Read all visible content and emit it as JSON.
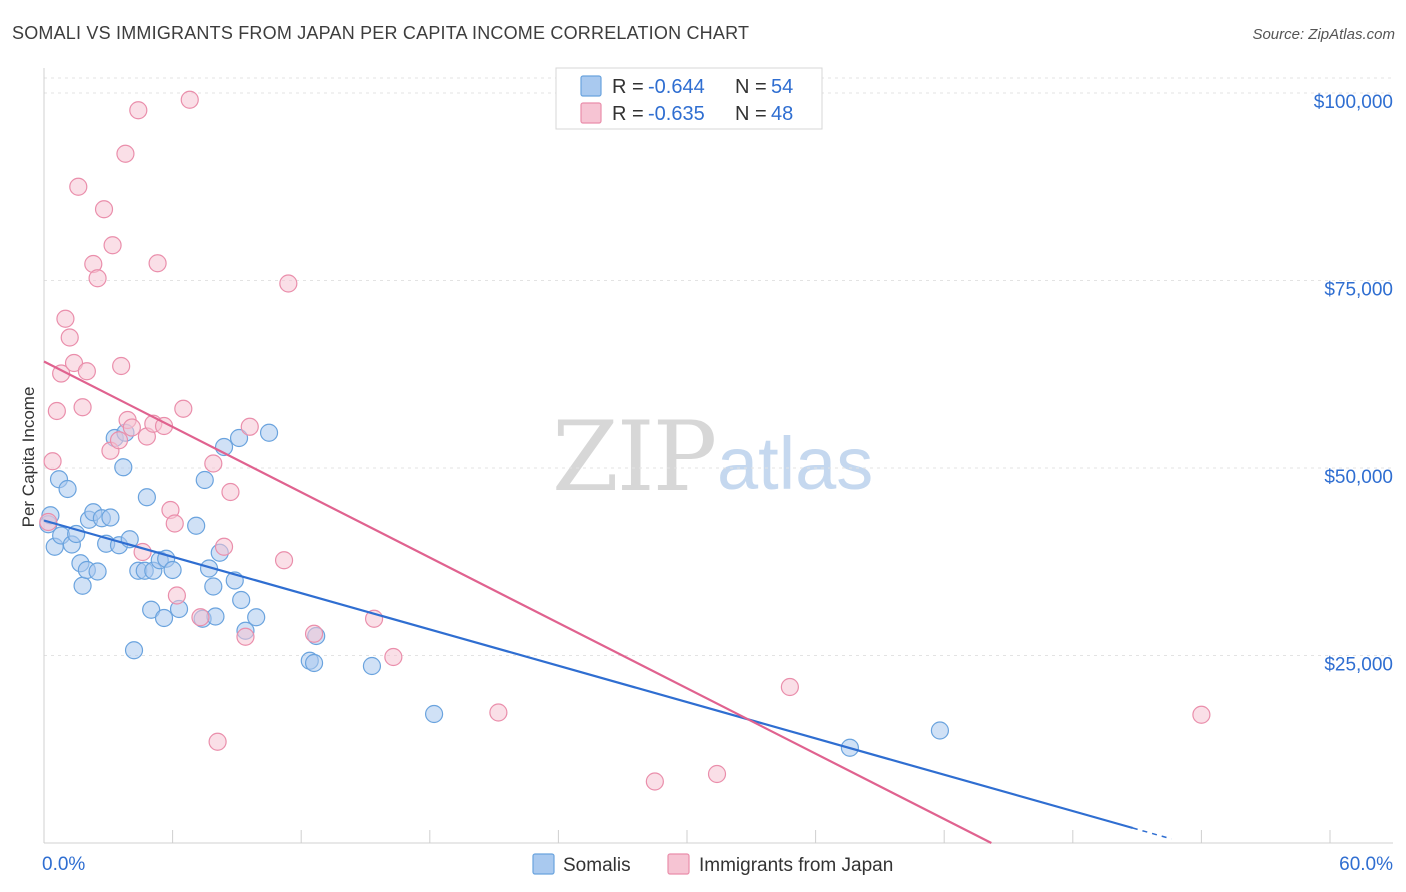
{
  "chart_data": {
    "type": "scatter",
    "title": "SOMALI VS IMMIGRANTS FROM JAPAN PER CAPITA INCOME CORRELATION CHART",
    "source": "Source: ZipAtlas.com",
    "xlabel": "",
    "ylabel": "Per Capita Income",
    "xlim": [
      0,
      60
    ],
    "ylim": [
      0,
      100000
    ],
    "x_tick_labels": {
      "left": "0.0%",
      "right": "60.0%"
    },
    "y_ticks": [
      {
        "value": 100000,
        "label": "$100,000"
      },
      {
        "value": 75000,
        "label": "$75,000"
      },
      {
        "value": 50000,
        "label": "$50,000"
      },
      {
        "value": 25000,
        "label": "$25,000"
      }
    ],
    "grid": true,
    "watermark": {
      "part1": "ZIP",
      "part2": "atlas"
    },
    "legend": {
      "placement": "top-center",
      "r_label": "R = ",
      "n_label": "N = ",
      "entries": [
        {
          "series": "Somalis",
          "r": "-0.644",
          "n": "54"
        },
        {
          "series": "Immigrants from Japan",
          "r": "-0.635",
          "n": "48"
        }
      ]
    },
    "series": [
      {
        "name": "Somalis",
        "color": "#6aa3de",
        "fill": "#a9c9ef",
        "line_color": "#2f6ed1",
        "trend": {
          "x_start": 0,
          "y_start": 43000,
          "x_end": 50.8,
          "y_end": 2000,
          "x_dashed_end": 52.6
        },
        "points": [
          [
            0.2,
            42500
          ],
          [
            0.3,
            43700
          ],
          [
            0.5,
            39500
          ],
          [
            0.7,
            48500
          ],
          [
            0.8,
            41000
          ],
          [
            1.1,
            47200
          ],
          [
            1.3,
            39800
          ],
          [
            1.5,
            41200
          ],
          [
            1.7,
            37300
          ],
          [
            1.8,
            34300
          ],
          [
            2.0,
            36400
          ],
          [
            2.1,
            43100
          ],
          [
            2.3,
            44100
          ],
          [
            2.5,
            36200
          ],
          [
            2.7,
            43300
          ],
          [
            2.9,
            39900
          ],
          [
            3.1,
            43400
          ],
          [
            3.3,
            54000
          ],
          [
            3.5,
            39700
          ],
          [
            3.7,
            50100
          ],
          [
            3.8,
            54700
          ],
          [
            4.0,
            40500
          ],
          [
            4.2,
            25700
          ],
          [
            4.4,
            36300
          ],
          [
            4.7,
            36300
          ],
          [
            4.8,
            46100
          ],
          [
            5.0,
            31100
          ],
          [
            5.1,
            36300
          ],
          [
            5.4,
            37700
          ],
          [
            5.6,
            30000
          ],
          [
            5.7,
            37900
          ],
          [
            6.0,
            36400
          ],
          [
            6.3,
            31200
          ],
          [
            7.1,
            42300
          ],
          [
            7.4,
            29900
          ],
          [
            7.5,
            48400
          ],
          [
            7.7,
            36600
          ],
          [
            7.9,
            34200
          ],
          [
            8.0,
            30200
          ],
          [
            8.2,
            38700
          ],
          [
            8.4,
            52800
          ],
          [
            8.9,
            35000
          ],
          [
            9.1,
            54000
          ],
          [
            9.2,
            32400
          ],
          [
            9.4,
            28300
          ],
          [
            9.9,
            30100
          ],
          [
            10.5,
            54700
          ],
          [
            12.4,
            24300
          ],
          [
            12.6,
            24000
          ],
          [
            12.7,
            27600
          ],
          [
            15.3,
            23600
          ],
          [
            18.2,
            17200
          ],
          [
            37.6,
            12700
          ],
          [
            41.8,
            15000
          ]
        ]
      },
      {
        "name": "Immigrants from Japan",
        "color": "#ea8eab",
        "fill": "#f6c4d3",
        "line_color": "#e0628f",
        "trend": {
          "x_start": 0,
          "y_start": 64200,
          "x_end": 44.2,
          "y_end": 0
        },
        "points": [
          [
            0.2,
            42800
          ],
          [
            0.4,
            50900
          ],
          [
            0.6,
            57600
          ],
          [
            0.8,
            62600
          ],
          [
            1.0,
            69900
          ],
          [
            1.2,
            67400
          ],
          [
            1.4,
            64000
          ],
          [
            1.6,
            87500
          ],
          [
            1.8,
            58100
          ],
          [
            2.0,
            62900
          ],
          [
            2.3,
            77200
          ],
          [
            2.5,
            75300
          ],
          [
            2.8,
            84500
          ],
          [
            3.1,
            52300
          ],
          [
            3.2,
            79700
          ],
          [
            3.5,
            53700
          ],
          [
            3.6,
            63600
          ],
          [
            3.8,
            91900
          ],
          [
            3.9,
            56400
          ],
          [
            4.1,
            55400
          ],
          [
            4.4,
            97700
          ],
          [
            4.6,
            38800
          ],
          [
            4.8,
            54200
          ],
          [
            5.1,
            55900
          ],
          [
            5.3,
            77300
          ],
          [
            5.6,
            55600
          ],
          [
            5.9,
            44400
          ],
          [
            6.1,
            42600
          ],
          [
            6.2,
            33000
          ],
          [
            6.5,
            57900
          ],
          [
            6.8,
            99100
          ],
          [
            7.3,
            30100
          ],
          [
            7.9,
            50600
          ],
          [
            8.1,
            13500
          ],
          [
            8.4,
            39500
          ],
          [
            8.7,
            46800
          ],
          [
            9.4,
            27500
          ],
          [
            9.6,
            55500
          ],
          [
            11.2,
            37700
          ],
          [
            11.4,
            74600
          ],
          [
            12.6,
            27900
          ],
          [
            15.4,
            29900
          ],
          [
            16.3,
            24800
          ],
          [
            21.2,
            17400
          ],
          [
            28.5,
            8200
          ],
          [
            31.4,
            9200
          ],
          [
            34.8,
            20800
          ],
          [
            54.0,
            17100
          ]
        ]
      }
    ]
  }
}
